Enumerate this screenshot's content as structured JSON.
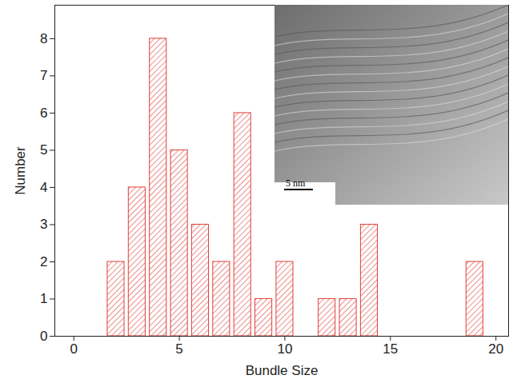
{
  "chart_data": {
    "type": "bar",
    "x": [
      2,
      3,
      4,
      5,
      6,
      7,
      8,
      9,
      10,
      12,
      13,
      14,
      19
    ],
    "values": [
      2,
      4,
      8,
      5,
      3,
      2,
      6,
      1,
      2,
      1,
      1,
      3,
      2
    ],
    "x_label": "Bundle Size",
    "y_label": "Number",
    "xlim": [
      -0.9,
      20.6
    ],
    "ylim": [
      0,
      8.9
    ],
    "xticks": [
      0,
      5,
      10,
      15,
      20
    ],
    "yticks": [
      0,
      1,
      2,
      3,
      4,
      5,
      6,
      7,
      8
    ],
    "color": "#e0403a",
    "annotations": [
      "5 nm"
    ]
  }
}
